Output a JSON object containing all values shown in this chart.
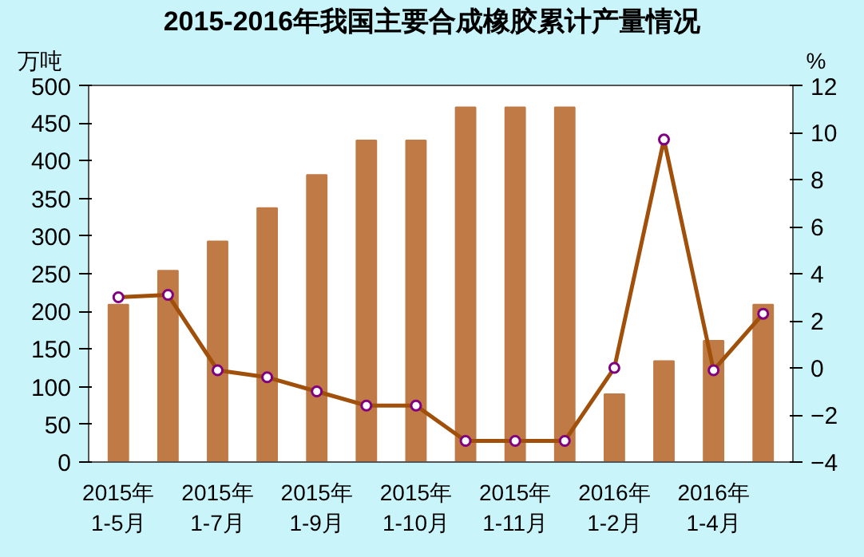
{
  "chart_data": {
    "type": "bar",
    "title": "2015-2016年我国主要合成橡胶累计产量情况",
    "ylabel": "万吨",
    "y2label": "%",
    "categories": [
      "2015年\n1-5月",
      null,
      "2015年\n1-7月",
      null,
      "2015年\n1-9月",
      null,
      "2015年\n1-10月",
      null,
      "2015年\n1-11月",
      null,
      "2016年\n1-2月",
      null,
      "2016年\n1-4月",
      null
    ],
    "series": [
      {
        "type": "bar",
        "color": "#c07a45",
        "values": [
          209,
          254,
          293,
          337,
          381,
          427,
          427,
          471,
          471,
          471,
          90,
          134,
          161,
          209
        ]
      },
      {
        "type": "line",
        "axis": "y2",
        "color": "#a0500a",
        "marker": "circle",
        "values": [
          3.0,
          3.1,
          -0.1,
          -0.4,
          -1.0,
          -1.6,
          -1.6,
          -3.1,
          -3.1,
          -3.1,
          0.0,
          9.7,
          -0.1,
          2.3
        ]
      }
    ],
    "ylim": [
      0,
      500
    ],
    "yticks": [
      0,
      50,
      100,
      150,
      200,
      250,
      300,
      350,
      400,
      450,
      500
    ],
    "y2lim": [
      -4,
      12
    ],
    "y2ticks": [
      -4,
      -2,
      0,
      2,
      4,
      6,
      8,
      10,
      12
    ],
    "grid": false
  }
}
